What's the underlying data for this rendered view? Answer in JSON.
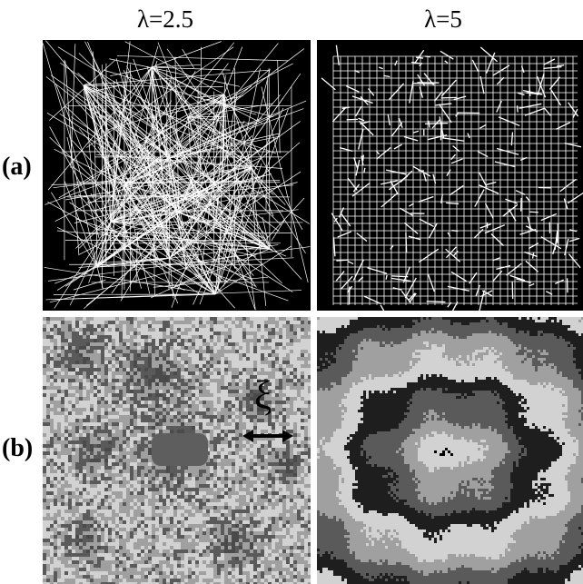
{
  "columns": [
    {
      "label": "λ=2.5"
    },
    {
      "label": "λ=5"
    }
  ],
  "rows": [
    {
      "label": "(a)"
    },
    {
      "label": "(b)"
    }
  ],
  "annotation": {
    "symbol": "ξ"
  },
  "colors": {
    "background": "#000000",
    "lines": "#ffffff",
    "gray_light": "#d2d2d2",
    "gray_mid": "#a0a0a0",
    "gray_dark": "#5a5a5a",
    "gray_black": "#1e1e1e"
  }
}
